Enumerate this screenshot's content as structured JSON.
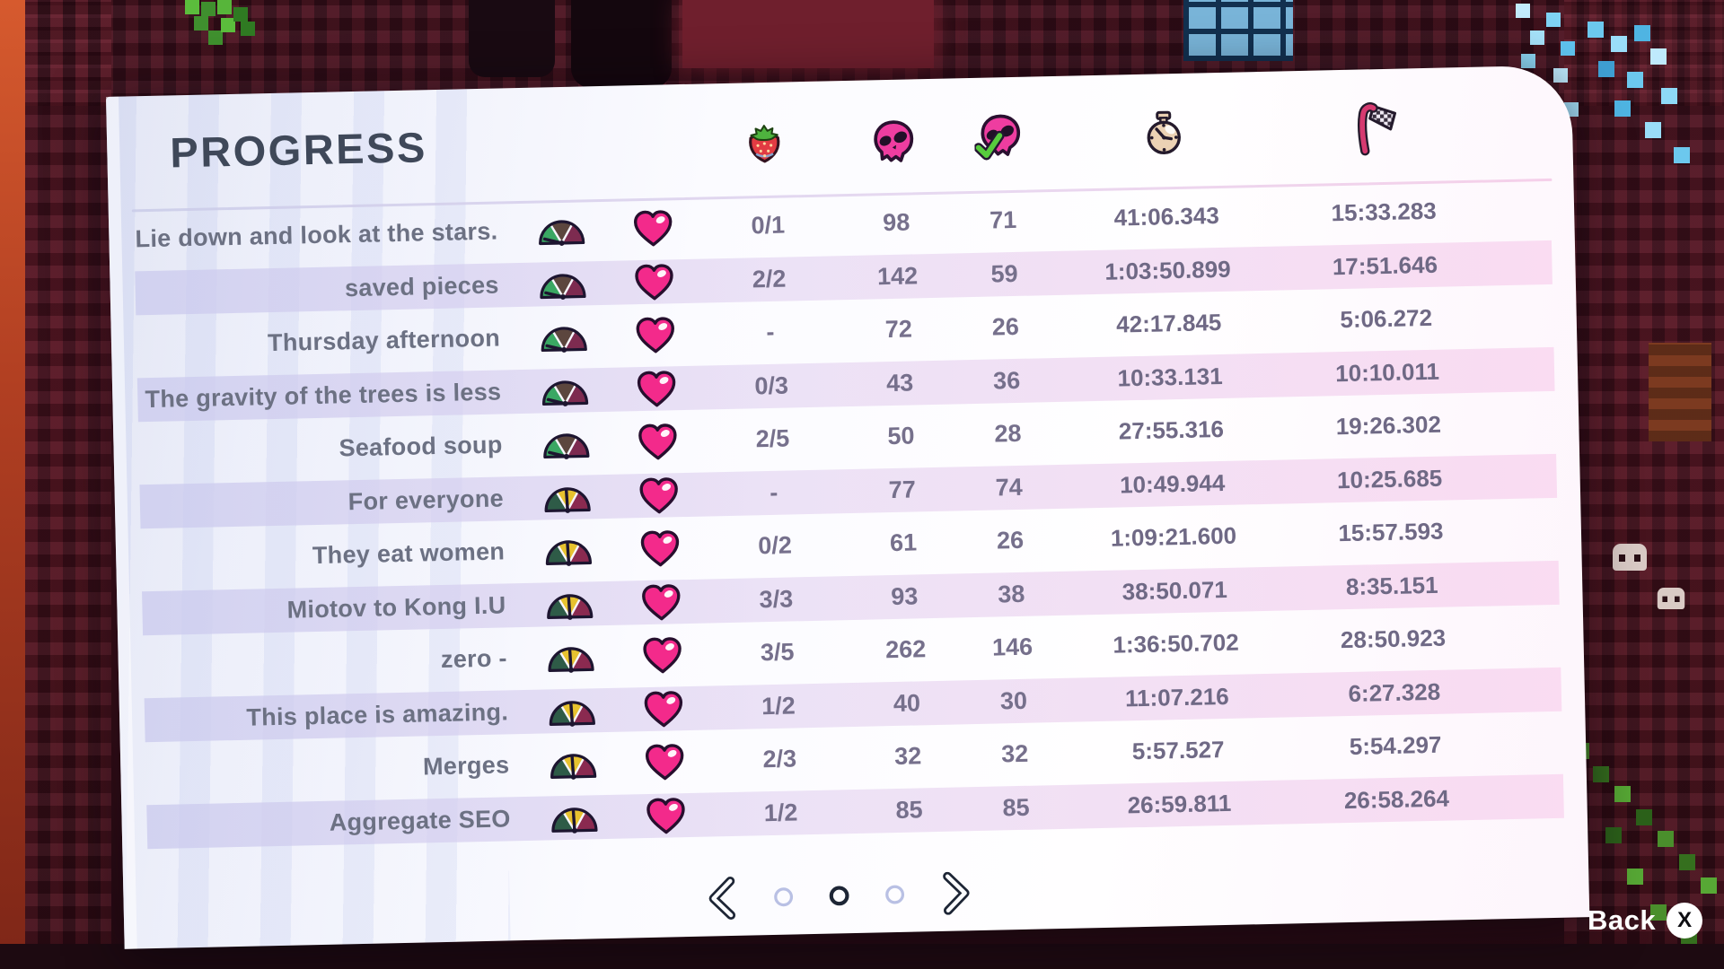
{
  "title": "PROGRESS",
  "columns": [
    {
      "id": "berries",
      "icon": "strawberry-icon"
    },
    {
      "id": "deaths",
      "icon": "skull-icon"
    },
    {
      "id": "clear_deaths",
      "icon": "skull-check-icon"
    },
    {
      "id": "total_time",
      "icon": "stopwatch-icon"
    },
    {
      "id": "best_time",
      "icon": "checkpoint-flag-icon"
    }
  ],
  "rows": [
    {
      "name": "Lie down and look at the stars.",
      "gauge": "green",
      "berries": "0/1",
      "deaths": "98",
      "clears": "71",
      "time": "41:06.343",
      "best": "15:33.283"
    },
    {
      "name": "saved pieces",
      "gauge": "green",
      "berries": "2/2",
      "deaths": "142",
      "clears": "59",
      "time": "1:03:50.899",
      "best": "17:51.646"
    },
    {
      "name": "Thursday afternoon",
      "gauge": "green",
      "berries": "-",
      "deaths": "72",
      "clears": "26",
      "time": "42:17.845",
      "best": "5:06.272"
    },
    {
      "name": "The gravity of the trees is less",
      "gauge": "green",
      "berries": "0/3",
      "deaths": "43",
      "clears": "36",
      "time": "10:33.131",
      "best": "10:10.011"
    },
    {
      "name": "Seafood soup",
      "gauge": "green",
      "berries": "2/5",
      "deaths": "50",
      "clears": "28",
      "time": "27:55.316",
      "best": "19:26.302"
    },
    {
      "name": "For everyone",
      "gauge": "yellow",
      "berries": "-",
      "deaths": "77",
      "clears": "74",
      "time": "10:49.944",
      "best": "10:25.685"
    },
    {
      "name": "They eat women",
      "gauge": "yellow",
      "berries": "0/2",
      "deaths": "61",
      "clears": "26",
      "time": "1:09:21.600",
      "best": "15:57.593"
    },
    {
      "name": "Miotov to Kong I.U",
      "gauge": "yellow",
      "berries": "3/3",
      "deaths": "93",
      "clears": "38",
      "time": "38:50.071",
      "best": "8:35.151"
    },
    {
      "name": "zero -",
      "gauge": "yellow",
      "berries": "3/5",
      "deaths": "262",
      "clears": "146",
      "time": "1:36:50.702",
      "best": "28:50.923"
    },
    {
      "name": "This place is amazing.",
      "gauge": "yellow",
      "berries": "1/2",
      "deaths": "40",
      "clears": "30",
      "time": "11:07.216",
      "best": "6:27.328"
    },
    {
      "name": "Merges",
      "gauge": "yellow",
      "berries": "2/3",
      "deaths": "32",
      "clears": "32",
      "time": "5:57.527",
      "best": "5:54.297"
    },
    {
      "name": "Aggregate SEO",
      "gauge": "yellow",
      "berries": "1/2",
      "deaths": "85",
      "clears": "85",
      "time": "26:59.811",
      "best": "26:58.264"
    }
  ],
  "pagination": {
    "total_pages": 3,
    "current_page": 2
  },
  "back": {
    "label": "Back",
    "glyph": "X"
  },
  "colors": {
    "heart_pink": "#f32a8b",
    "skull_pink": "#ee3da0",
    "check_green": "#57cb3d",
    "gauge_green_variant": [
      "#3aa763",
      "#5c463e",
      "#7d2b50"
    ],
    "gauge_yellow_variant": [
      "#2e5b47",
      "#e7c22f",
      "#8a2a50"
    ],
    "title_text": "#3f4859",
    "row_text": "#6c7183",
    "stripe_lavender": "#cbcbee",
    "stripe_pink": "#f9d7f0",
    "background_maroon": "#44131f"
  }
}
